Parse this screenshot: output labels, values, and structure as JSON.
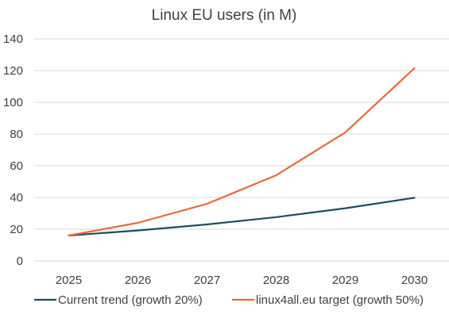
{
  "chart_data": {
    "type": "line",
    "title": "Linux EU users (in M)",
    "xlabel": "",
    "ylabel": "",
    "categories": [
      "2025",
      "2026",
      "2027",
      "2028",
      "2029",
      "2030"
    ],
    "y_ticks": [
      "0",
      "20",
      "40",
      "60",
      "80",
      "100",
      "120",
      "140"
    ],
    "ylim": [
      0,
      140
    ],
    "grid": true,
    "legend_position": "bottom",
    "series": [
      {
        "name": "Current trend (growth 20%)",
        "color": "#1f4e5f",
        "values": [
          16,
          19.2,
          23,
          27.6,
          33.2,
          39.8
        ]
      },
      {
        "name": "linux4all.eu target (growth 50%)",
        "color": "#e8683a",
        "values": [
          16,
          24,
          36,
          54,
          81,
          121.5
        ]
      }
    ]
  }
}
